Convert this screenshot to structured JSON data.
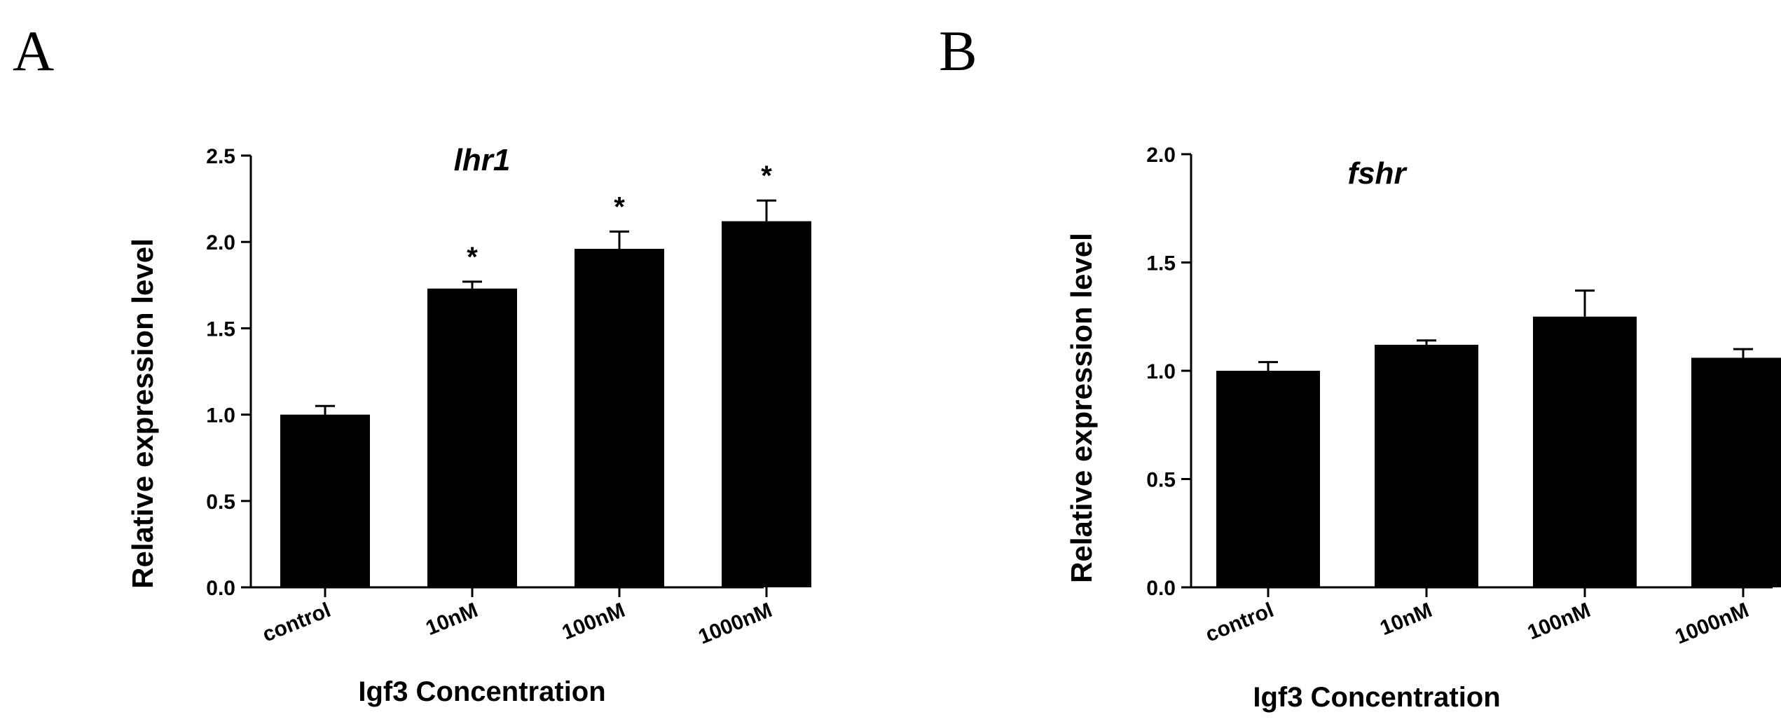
{
  "chart_data": [
    {
      "panel": "A",
      "type": "bar",
      "title": "lhr1",
      "xlabel": "Igf3 Concentration",
      "ylabel": "Relative expression level",
      "categories": [
        "control",
        "10nM",
        "100nM",
        "1000nM"
      ],
      "values": [
        1.0,
        1.73,
        1.96,
        2.12
      ],
      "errors": [
        0.05,
        0.04,
        0.1,
        0.12
      ],
      "significance": [
        "",
        "*",
        "*",
        "*"
      ],
      "ylim": [
        0,
        2.5
      ],
      "yticks": [
        "0.0",
        "0.5",
        "1.0",
        "1.5",
        "2.0",
        "2.5"
      ]
    },
    {
      "panel": "B",
      "type": "bar",
      "title": "fshr",
      "xlabel": "Igf3 Concentration",
      "ylabel": "Relative expression level",
      "categories": [
        "control",
        "10nM",
        "100nM",
        "1000nM"
      ],
      "values": [
        1.0,
        1.12,
        1.25,
        1.06
      ],
      "errors": [
        0.04,
        0.02,
        0.12,
        0.04
      ],
      "significance": [
        "",
        "",
        "",
        ""
      ],
      "ylim": [
        0,
        2.0
      ],
      "yticks": [
        "0.0",
        "0.5",
        "1.0",
        "1.5",
        "2.0"
      ]
    }
  ]
}
